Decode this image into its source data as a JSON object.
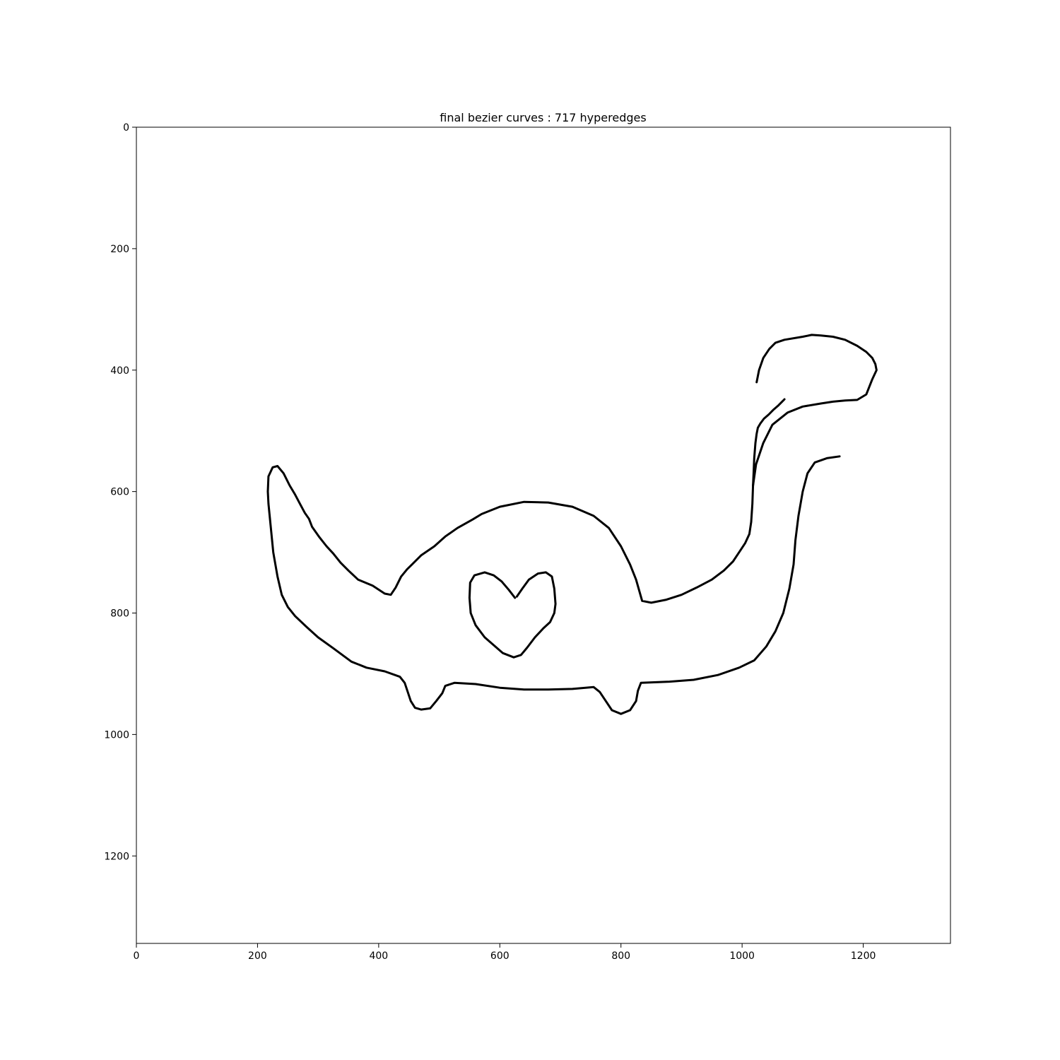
{
  "chart_data": {
    "type": "line",
    "title": "final bezier curves : 717 hyperedges",
    "xlabel": "",
    "ylabel": "",
    "xlim": [
      0,
      1344
    ],
    "ylim": [
      1344,
      0
    ],
    "y_inverted": true,
    "grid": false,
    "x_ticks": [
      0,
      200,
      400,
      600,
      800,
      1000,
      1200
    ],
    "y_ticks": [
      0,
      200,
      400,
      600,
      800,
      1000,
      1200
    ],
    "series": [
      {
        "color": "#000000",
        "points": [
          [
            1161,
            542
          ],
          [
            1140,
            545
          ],
          [
            1120,
            552
          ],
          [
            1108,
            570
          ],
          [
            1100,
            600
          ],
          [
            1093,
            640
          ],
          [
            1088,
            680
          ],
          [
            1085,
            720
          ],
          [
            1078,
            760
          ],
          [
            1068,
            800
          ],
          [
            1055,
            830
          ],
          [
            1040,
            855
          ],
          [
            1020,
            878
          ],
          [
            995,
            890
          ],
          [
            960,
            902
          ],
          [
            920,
            910
          ],
          [
            880,
            913
          ],
          [
            833,
            915
          ],
          [
            828,
            928
          ],
          [
            825,
            945
          ],
          [
            815,
            960
          ],
          [
            800,
            966
          ],
          [
            785,
            960
          ],
          [
            775,
            945
          ],
          [
            765,
            930
          ],
          [
            755,
            922
          ],
          [
            720,
            925
          ],
          [
            680,
            926
          ],
          [
            640,
            926
          ],
          [
            600,
            923
          ],
          [
            560,
            917
          ],
          [
            525,
            915
          ],
          [
            510,
            920
          ],
          [
            505,
            932
          ],
          [
            495,
            945
          ],
          [
            485,
            957
          ],
          [
            470,
            959
          ],
          [
            460,
            956
          ],
          [
            453,
            945
          ],
          [
            448,
            930
          ],
          [
            443,
            915
          ],
          [
            435,
            905
          ],
          [
            410,
            896
          ],
          [
            380,
            890
          ],
          [
            355,
            880
          ],
          [
            325,
            858
          ],
          [
            300,
            840
          ],
          [
            280,
            822
          ],
          [
            262,
            805
          ],
          [
            250,
            790
          ],
          [
            240,
            770
          ],
          [
            233,
            740
          ],
          [
            226,
            700
          ],
          [
            222,
            660
          ],
          [
            218,
            620
          ],
          [
            217,
            600
          ],
          [
            218,
            575
          ],
          [
            225,
            560
          ],
          [
            233,
            558
          ],
          [
            243,
            570
          ],
          [
            253,
            590
          ],
          [
            262,
            605
          ],
          [
            270,
            620
          ],
          [
            278,
            635
          ],
          [
            285,
            645
          ],
          [
            290,
            658
          ],
          [
            302,
            675
          ],
          [
            314,
            690
          ],
          [
            325,
            702
          ],
          [
            337,
            717
          ],
          [
            350,
            730
          ],
          [
            366,
            745
          ],
          [
            390,
            755
          ],
          [
            410,
            768
          ],
          [
            420,
            770
          ],
          [
            428,
            758
          ],
          [
            437,
            740
          ],
          [
            447,
            728
          ],
          [
            455,
            720
          ],
          [
            470,
            705
          ],
          [
            492,
            690
          ],
          [
            510,
            674
          ],
          [
            530,
            660
          ],
          [
            555,
            646
          ],
          [
            570,
            637
          ],
          [
            600,
            625
          ],
          [
            640,
            617
          ],
          [
            680,
            618
          ],
          [
            720,
            625
          ],
          [
            755,
            640
          ],
          [
            780,
            660
          ],
          [
            800,
            690
          ],
          [
            815,
            720
          ],
          [
            825,
            745
          ],
          [
            835,
            780
          ],
          [
            850,
            783
          ],
          [
            875,
            778
          ],
          [
            900,
            770
          ],
          [
            925,
            758
          ],
          [
            950,
            745
          ],
          [
            970,
            730
          ],
          [
            985,
            715
          ],
          [
            995,
            700
          ],
          [
            1005,
            685
          ],
          [
            1012,
            670
          ],
          [
            1015,
            650
          ],
          [
            1017,
            620
          ],
          [
            1018,
            590
          ],
          [
            1023,
            555
          ],
          [
            1035,
            520
          ],
          [
            1050,
            490
          ],
          [
            1075,
            470
          ],
          [
            1100,
            460
          ],
          [
            1130,
            455
          ],
          [
            1150,
            452
          ],
          [
            1170,
            450
          ],
          [
            1190,
            449
          ],
          [
            1205,
            440
          ],
          [
            1215,
            415
          ],
          [
            1222,
            400
          ],
          [
            1220,
            390
          ],
          [
            1215,
            380
          ],
          [
            1205,
            370
          ],
          [
            1190,
            360
          ],
          [
            1170,
            350
          ],
          [
            1150,
            345
          ],
          [
            1130,
            343
          ],
          [
            1115,
            342
          ],
          [
            1100,
            345
          ],
          [
            1070,
            350
          ],
          [
            1055,
            355
          ],
          [
            1045,
            365
          ],
          [
            1035,
            380
          ],
          [
            1028,
            400
          ],
          [
            1024,
            420
          ]
        ]
      },
      {
        "color": "#000000",
        "points": [
          [
            1018,
            590
          ],
          [
            1019,
            570
          ],
          [
            1020,
            545
          ],
          [
            1022,
            520
          ],
          [
            1024,
            505
          ],
          [
            1026,
            495
          ],
          [
            1030,
            488
          ],
          [
            1036,
            480
          ],
          [
            1044,
            473
          ],
          [
            1052,
            465
          ],
          [
            1060,
            458
          ],
          [
            1066,
            452
          ],
          [
            1070,
            448
          ]
        ]
      },
      {
        "color": "#000000",
        "points": [
          [
            625,
            775
          ],
          [
            615,
            762
          ],
          [
            603,
            748
          ],
          [
            590,
            738
          ],
          [
            575,
            733
          ],
          [
            558,
            738
          ],
          [
            551,
            750
          ],
          [
            550,
            775
          ],
          [
            552,
            800
          ],
          [
            560,
            820
          ],
          [
            575,
            840
          ],
          [
            590,
            853
          ],
          [
            605,
            866
          ],
          [
            623,
            873
          ],
          [
            635,
            869
          ],
          [
            645,
            857
          ],
          [
            658,
            840
          ],
          [
            672,
            825
          ],
          [
            683,
            815
          ],
          [
            690,
            800
          ],
          [
            692,
            785
          ],
          [
            690,
            760
          ],
          [
            686,
            740
          ],
          [
            676,
            733
          ],
          [
            663,
            735
          ],
          [
            648,
            745
          ],
          [
            637,
            760
          ],
          [
            628,
            773
          ]
        ]
      }
    ]
  }
}
